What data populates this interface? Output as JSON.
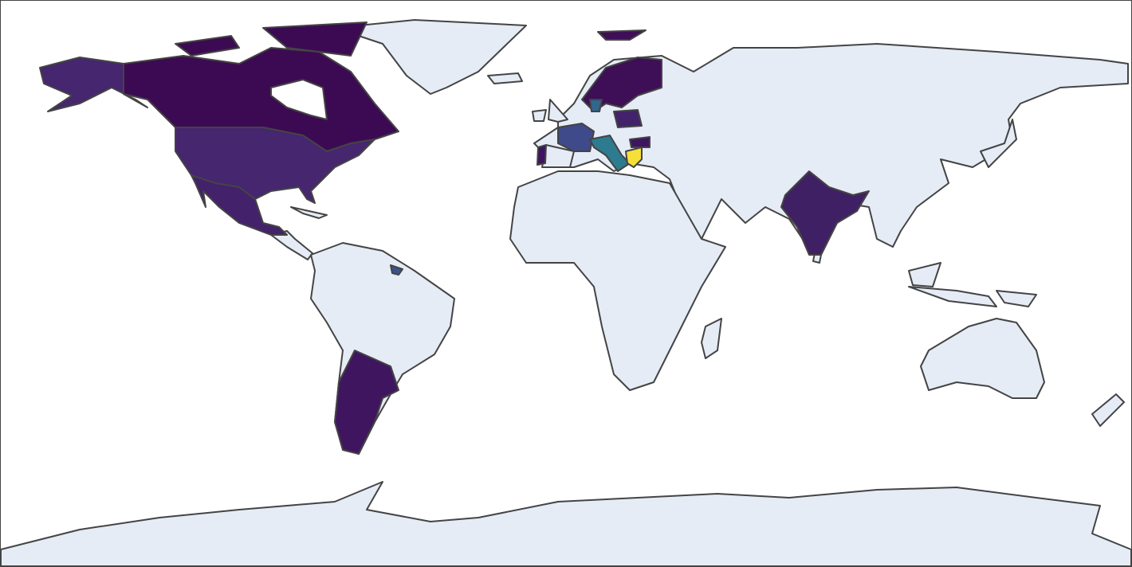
{
  "map": {
    "type": "choropleth",
    "ocean_color": "#ffffff",
    "land_color": "#e5ecf6",
    "border_color": "#444444",
    "fills": [
      "#3c0a52",
      "#45266f",
      "#43216b",
      "#3f1560",
      "#402064",
      "#3e4a89",
      "#2d7b8e",
      "#f5e03a",
      "#3e0e56",
      "#3f1360",
      "#31668e",
      "#41226b",
      "#3b528b"
    ]
  }
}
